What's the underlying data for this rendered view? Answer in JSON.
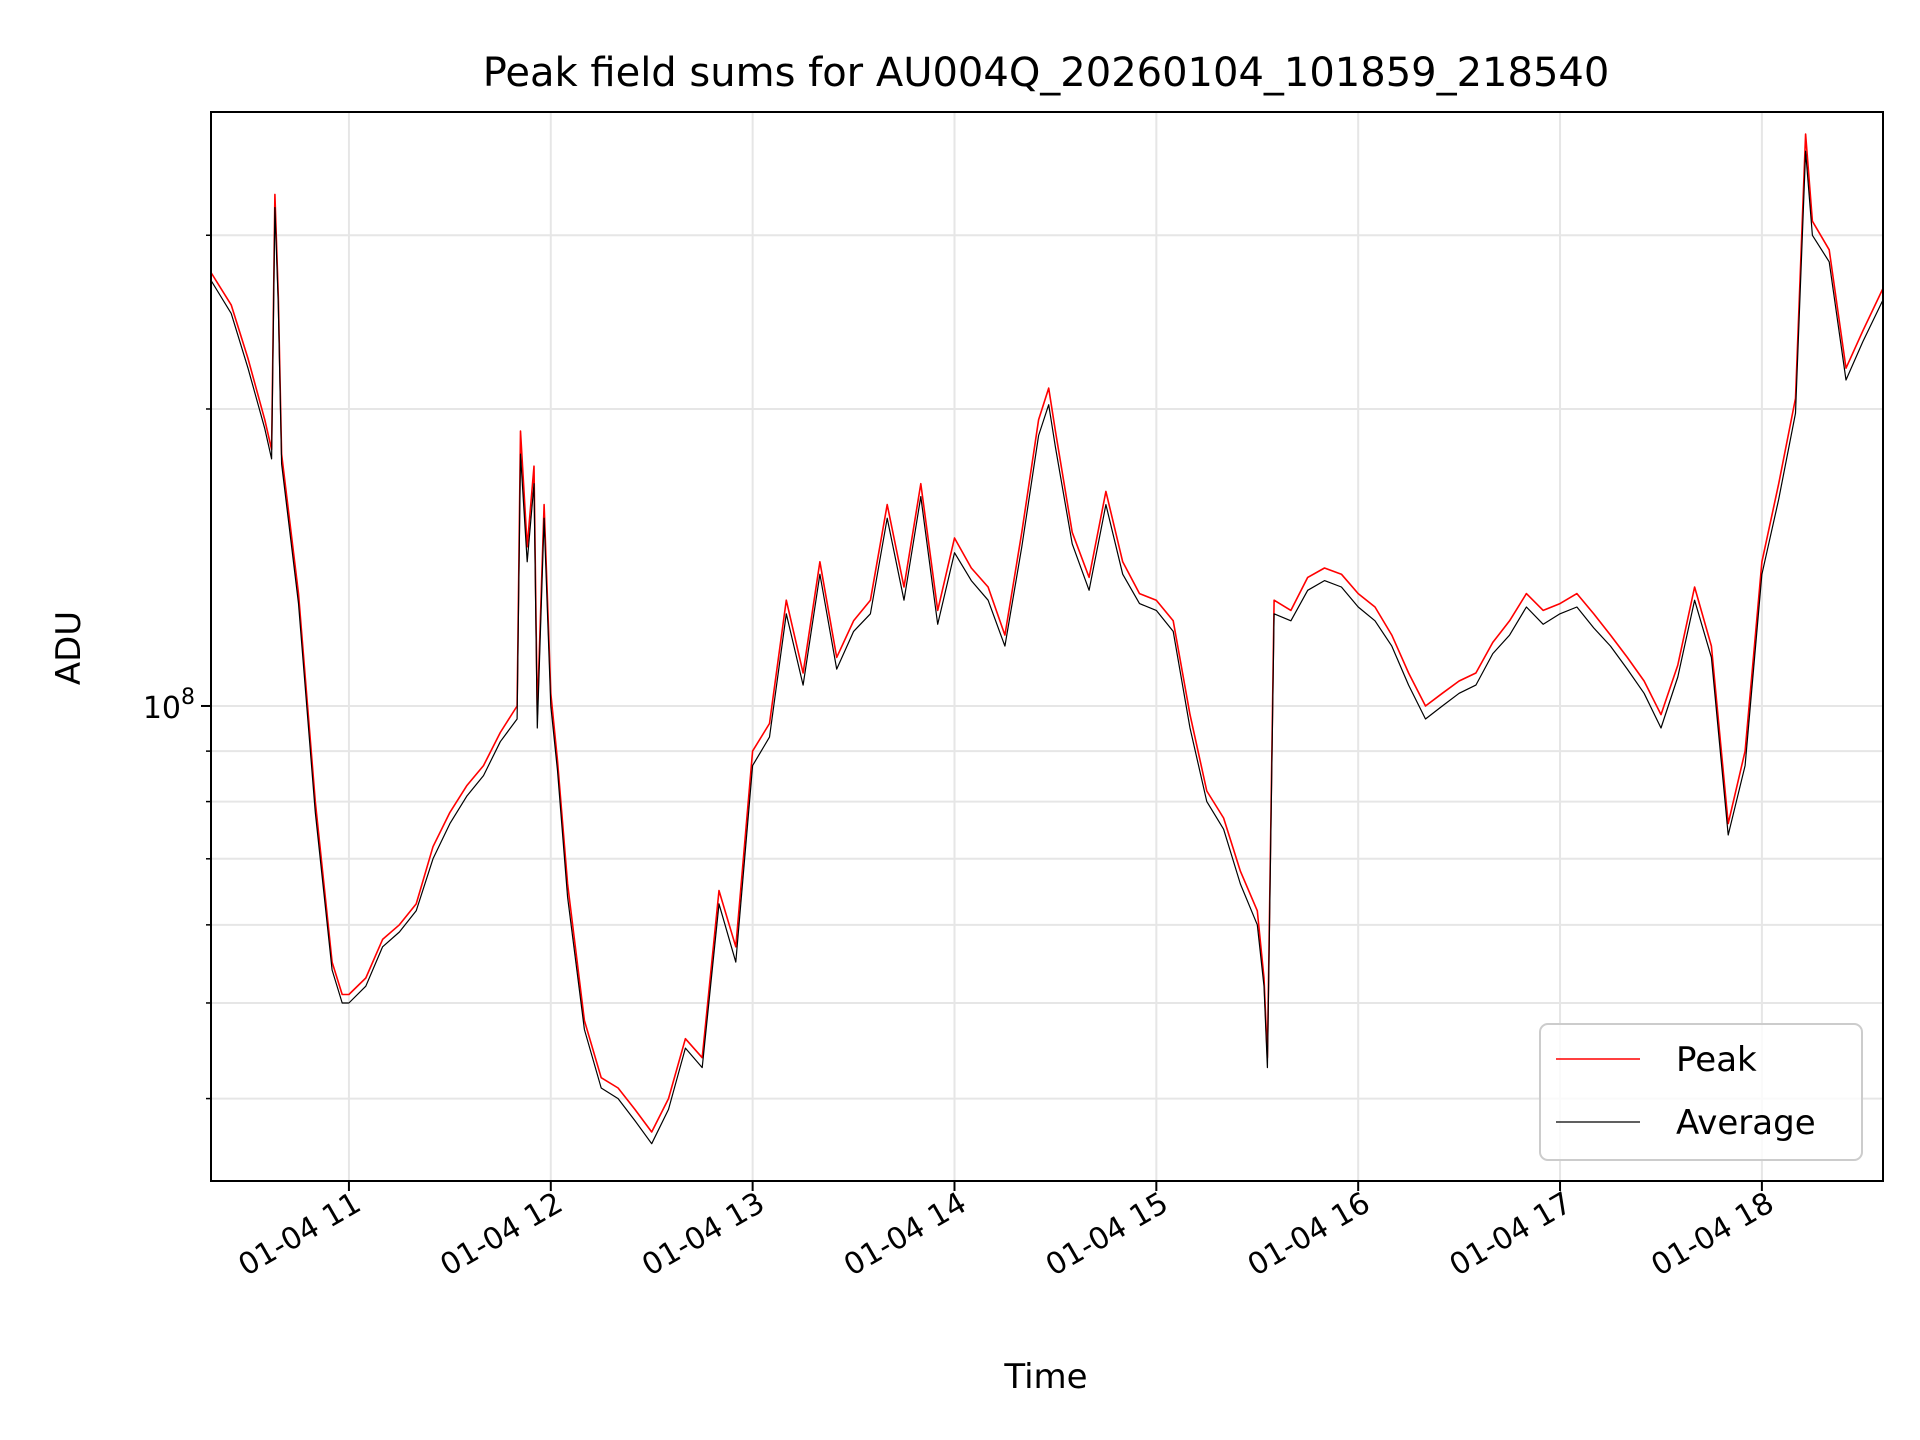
{
  "chart_data": {
    "type": "line",
    "title": "Peak field sums for AU004Q_20260104_101859_218540",
    "xlabel": "Time",
    "ylabel": "ADU",
    "y_scale": "log",
    "x_range": [
      "2026-01-04 10:19",
      "2026-01-04 18:36"
    ],
    "ylim": [
      33000000,
      400000000
    ],
    "x_ticks": [
      "01-04 11",
      "01-04 12",
      "01-04 13",
      "01-04 14",
      "01-04 15",
      "01-04 16",
      "01-04 17",
      "01-04 18"
    ],
    "y_tick_label": {
      "base": "10",
      "exponent": "8"
    },
    "y_major_tick": 100000000,
    "y_minor_ticks": [
      40000000,
      50000000,
      60000000,
      70000000,
      80000000,
      90000000,
      200000000,
      300000000
    ],
    "grid": true,
    "legend": {
      "position": "bottom-right",
      "entries": [
        "Peak",
        "Average"
      ]
    },
    "colors": {
      "Peak": "#ff0000",
      "Average": "#000000"
    },
    "x": [
      "10:19",
      "10:25",
      "10:30",
      "10:35",
      "10:37",
      "10:38",
      "10:39",
      "10:40",
      "10:45",
      "10:50",
      "10:55",
      "10:58",
      "11:00",
      "11:05",
      "11:10",
      "11:15",
      "11:20",
      "11:25",
      "11:30",
      "11:35",
      "11:40",
      "11:45",
      "11:50",
      "11:51",
      "11:53",
      "11:55",
      "11:56",
      "11:58",
      "12:00",
      "12:02",
      "12:05",
      "12:10",
      "12:15",
      "12:20",
      "12:25",
      "12:30",
      "12:35",
      "12:40",
      "12:45",
      "12:50",
      "12:55",
      "13:00",
      "13:05",
      "13:10",
      "13:15",
      "13:20",
      "13:25",
      "13:30",
      "13:35",
      "13:40",
      "13:45",
      "13:50",
      "13:55",
      "14:00",
      "14:05",
      "14:10",
      "14:15",
      "14:20",
      "14:25",
      "14:28",
      "14:30",
      "14:35",
      "14:40",
      "14:45",
      "14:50",
      "14:55",
      "15:00",
      "15:05",
      "15:10",
      "15:15",
      "15:20",
      "15:25",
      "15:30",
      "15:32",
      "15:33",
      "15:35",
      "15:40",
      "15:45",
      "15:50",
      "15:55",
      "16:00",
      "16:05",
      "16:10",
      "16:15",
      "16:20",
      "16:25",
      "16:30",
      "16:35",
      "16:40",
      "16:45",
      "16:50",
      "16:55",
      "17:00",
      "17:05",
      "17:10",
      "17:15",
      "17:20",
      "17:25",
      "17:30",
      "17:35",
      "17:40",
      "17:45",
      "17:50",
      "17:55",
      "18:00",
      "18:05",
      "18:10",
      "18:13",
      "18:15",
      "18:20",
      "18:25",
      "18:30",
      "18:36"
    ],
    "series": [
      {
        "name": "Peak",
        "values": [
          275000000,
          255000000,
          225000000,
          195000000,
          182000000,
          330000000,
          260000000,
          180000000,
          130000000,
          80000000,
          55000000,
          51000000,
          51000000,
          53000000,
          58000000,
          60000000,
          63000000,
          72000000,
          78000000,
          83000000,
          87000000,
          94000000,
          100000000,
          190000000,
          145000000,
          175000000,
          98000000,
          160000000,
          103000000,
          88000000,
          66000000,
          48000000,
          42000000,
          41000000,
          39000000,
          37000000,
          40000000,
          46000000,
          44000000,
          65000000,
          57000000,
          90000000,
          96000000,
          128000000,
          108000000,
          140000000,
          112000000,
          122000000,
          128000000,
          160000000,
          132000000,
          168000000,
          125000000,
          148000000,
          138000000,
          132000000,
          118000000,
          150000000,
          195000000,
          210000000,
          190000000,
          150000000,
          135000000,
          165000000,
          140000000,
          130000000,
          128000000,
          122000000,
          98000000,
          82000000,
          77000000,
          68000000,
          62000000,
          53000000,
          44000000,
          128000000,
          125000000,
          135000000,
          138000000,
          136000000,
          130000000,
          126000000,
          118000000,
          108000000,
          100000000,
          103000000,
          106000000,
          108000000,
          116000000,
          122000000,
          130000000,
          125000000,
          127000000,
          130000000,
          124000000,
          118000000,
          112000000,
          106000000,
          98000000,
          110000000,
          132000000,
          115000000,
          76000000,
          90000000,
          140000000,
          168000000,
          205000000,
          380000000,
          310000000,
          290000000,
          220000000,
          240000000,
          265000000
        ]
      },
      {
        "name": "Average",
        "values": [
          270000000,
          250000000,
          220000000,
          191000000,
          178000000,
          320000000,
          255000000,
          176000000,
          127000000,
          78000000,
          54000000,
          50000000,
          50000000,
          52000000,
          57000000,
          59000000,
          62000000,
          70000000,
          76000000,
          81000000,
          85000000,
          92000000,
          97000000,
          180000000,
          140000000,
          168000000,
          95000000,
          155000000,
          100000000,
          86000000,
          64000000,
          47000000,
          41000000,
          40000000,
          38000000,
          36000000,
          39000000,
          45000000,
          43000000,
          63000000,
          55000000,
          87000000,
          93000000,
          124000000,
          105000000,
          136000000,
          109000000,
          119000000,
          124000000,
          155000000,
          128000000,
          163000000,
          121000000,
          143000000,
          134000000,
          128000000,
          115000000,
          145000000,
          188000000,
          202000000,
          183000000,
          146000000,
          131000000,
          160000000,
          136000000,
          127000000,
          125000000,
          119000000,
          95000000,
          80000000,
          75000000,
          66000000,
          60000000,
          52000000,
          43000000,
          124000000,
          122000000,
          131000000,
          134000000,
          132000000,
          126000000,
          122000000,
          115000000,
          105000000,
          97000000,
          100000000,
          103000000,
          105000000,
          113000000,
          118000000,
          126000000,
          121000000,
          124000000,
          126000000,
          120000000,
          115000000,
          109000000,
          103000000,
          95000000,
          107000000,
          128000000,
          112000000,
          74000000,
          87000000,
          136000000,
          162000000,
          198000000,
          365000000,
          300000000,
          282000000,
          214000000,
          234000000,
          258000000
        ]
      }
    ]
  }
}
